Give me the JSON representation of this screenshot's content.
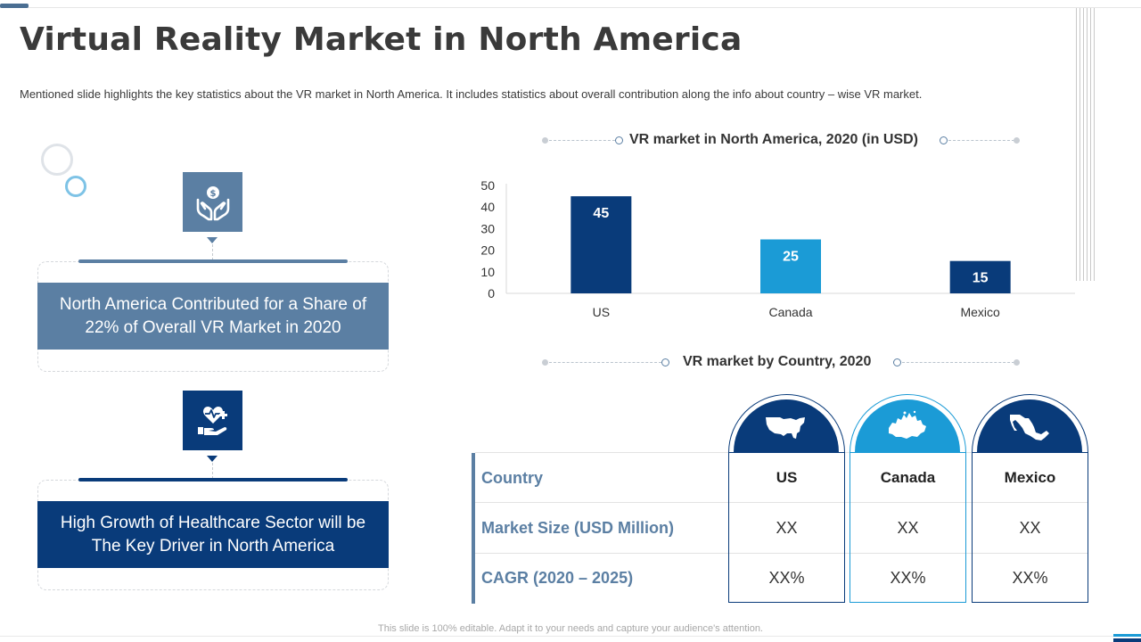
{
  "title": "Virtual Reality Market in North America",
  "subtitle": "Mentioned slide highlights the key statistics about the VR market in North America. It includes statistics about overall contribution along the info about country – wise VR market.",
  "cards": [
    {
      "icon": "money-hands-icon",
      "text": "North America Contributed for a Share of 22% of Overall VR Market in 2020"
    },
    {
      "icon": "healthcare-hand-icon",
      "text": "High Growth of Healthcare Sector will be The Key Driver in North America"
    }
  ],
  "chart_section_title": "VR market in North America, 2020 (in USD)",
  "chart_data": {
    "type": "bar",
    "title": "VR market in North America, 2020 (in USD)",
    "categories": [
      "US",
      "Canada",
      "Mexico"
    ],
    "values": [
      45,
      25,
      15
    ],
    "data_labels": [
      "45",
      "25",
      "15"
    ],
    "bar_colors": [
      "#093b7a",
      "#1b9bd6",
      "#093b7a"
    ],
    "yticks": [
      0,
      10,
      20,
      30,
      40,
      50
    ],
    "ylim": [
      0,
      50
    ],
    "xlabel": "",
    "ylabel": ""
  },
  "table_section_title": "VR market by Country, 2020",
  "table": {
    "row_labels": [
      "Country",
      "Market Size (USD Million)",
      "CAGR  (2020 – 2025)"
    ],
    "columns": [
      {
        "name": "US",
        "map_icon": "us-map-icon",
        "market_size": "XX",
        "cagr": "XX%"
      },
      {
        "name": "Canada",
        "map_icon": "canada-map-icon",
        "market_size": "XX",
        "cagr": "XX%"
      },
      {
        "name": "Mexico",
        "map_icon": "mexico-map-icon",
        "market_size": "XX",
        "cagr": "XX%"
      }
    ]
  },
  "footer": "This slide is 100% editable. Adapt it to your needs and capture your audience's attention."
}
